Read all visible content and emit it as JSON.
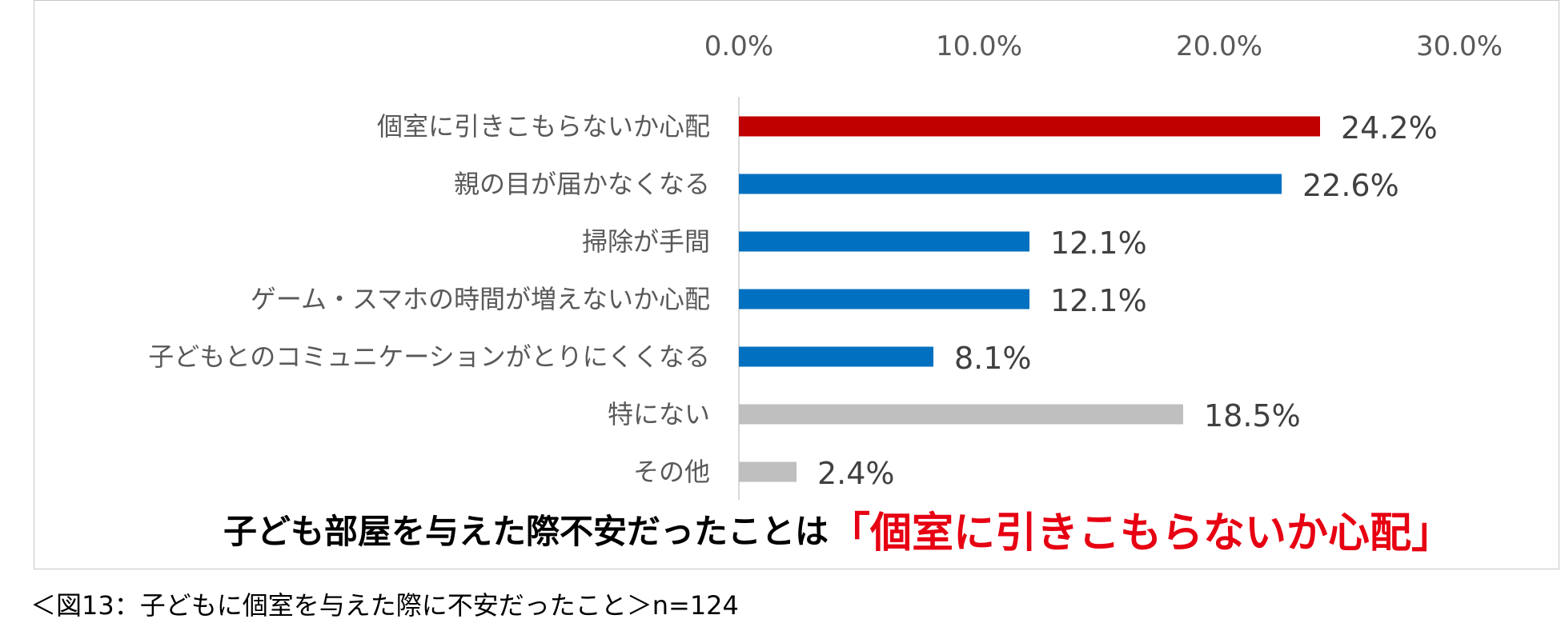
{
  "chart_data": {
    "type": "bar",
    "orientation": "horizontal",
    "categories": [
      "個室に引きこもらないか心配",
      "親の目が届かなくなる",
      "掃除が手間",
      "ゲーム・スマホの時間が増えないか心配",
      "子どもとのコミュニケーションがとりにくくなる",
      "特にない",
      "その他"
    ],
    "values": [
      24.2,
      22.6,
      12.1,
      12.1,
      8.1,
      18.5,
      2.4
    ],
    "data_labels": [
      "24.2%",
      "22.6%",
      "12.1%",
      "12.1%",
      "8.1%",
      "18.5%",
      "2.4%"
    ],
    "bar_colors": [
      "#c00000",
      "#0070c0",
      "#0070c0",
      "#0070c0",
      "#0070c0",
      "#bfbfbf",
      "#bfbfbf"
    ],
    "xlim": [
      0,
      30
    ],
    "x_ticks": [
      0,
      10,
      20,
      30
    ],
    "x_tick_labels": [
      "0.0%",
      "10.0%",
      "20.0%",
      "30.0%"
    ],
    "x_axis_position": "top",
    "grid": false,
    "title": "",
    "xlabel": "",
    "ylabel": ""
  },
  "headline": {
    "lead": "子ども部屋を与えた際不安だったことは",
    "accent": "「個室に引きこもらないか心配」",
    "accent_color": "#e60012"
  },
  "caption": "＜図13：子どもに個室を与えた際に不安だったこと＞n=124"
}
